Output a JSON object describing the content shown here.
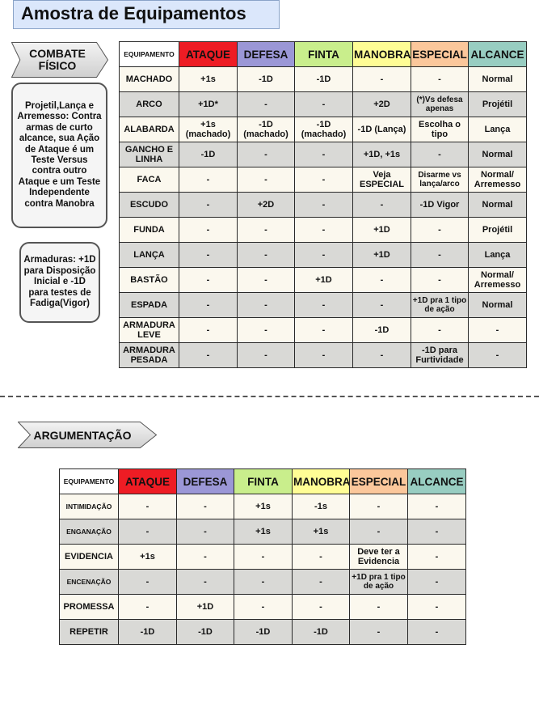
{
  "page": {
    "title": "Amostra de Equipamentos"
  },
  "combat": {
    "label_line1": "COMBATE",
    "label_line2": "FÍSICO",
    "note_ranged": "Projetil,Lança e Arremesso: Contra armas de curto alcance, sua Ação de Ataque é um Teste Versus contra outro Ataque e um Teste Independente contra Manobra",
    "note_armor": "Armaduras: +1D para Disposição Inicial e -1D para testes de Fadiga(Vigor)",
    "headers": [
      "EQUIPAMENTO",
      "ATAQUE",
      "DEFESA",
      "FINTA",
      "MANOBRA",
      "ESPECIAL",
      "ALCANCE"
    ],
    "rows": [
      [
        "MACHADO",
        "+1s",
        "-1D",
        "-1D",
        "-",
        "-",
        "Normal"
      ],
      [
        "ARCO",
        "+1D*",
        "-",
        "-",
        "+2D",
        "(*)Vs defesa apenas",
        "Projétil"
      ],
      [
        "ALABARDA",
        "+1s (machado)",
        "-1D (machado)",
        "-1D (machado)",
        "-1D (Lança)",
        "Escolha o tipo",
        "Lança"
      ],
      [
        "GANCHO E LINHA",
        "-1D",
        "-",
        "-",
        "+1D, +1s",
        "-",
        "Normal"
      ],
      [
        "FACA",
        "-",
        "-",
        "-",
        "Veja ESPECIAL",
        "Disarme vs lança/arco",
        "Normal/ Arremesso"
      ],
      [
        "ESCUDO",
        "-",
        "+2D",
        "-",
        "-",
        "-1D Vigor",
        "Normal"
      ],
      [
        "FUNDA",
        "-",
        "-",
        "-",
        "+1D",
        "-",
        "Projétil"
      ],
      [
        "LANÇA",
        "-",
        "-",
        "-",
        "+1D",
        "-",
        "Lança"
      ],
      [
        "BASTÃO",
        "-",
        "-",
        "+1D",
        "-",
        "-",
        "Normal/ Arremesso"
      ],
      [
        "ESPADA",
        "-",
        "-",
        "-",
        "-",
        "+1D pra 1 tipo de ação",
        "Normal"
      ],
      [
        "ARMADURA LEVE",
        "-",
        "-",
        "-",
        "-1D",
        "-",
        "-"
      ],
      [
        "ARMADURA PESADA",
        "-",
        "-",
        "-",
        "-",
        "-1D para Furtividade",
        "-"
      ]
    ]
  },
  "argument": {
    "label": "ARGUMENTAÇÃO",
    "headers": [
      "EQUIPAMENTO",
      "ATAQUE",
      "DEFESA",
      "FINTA",
      "MANOBRA",
      "ESPECIAL",
      "ALCANCE"
    ],
    "rows": [
      [
        "INTIMIDAÇÃO",
        "-",
        "-",
        "+1s",
        "-1s",
        "-",
        "-"
      ],
      [
        "ENGANAÇÃO",
        "-",
        "-",
        "+1s",
        "+1s",
        "-",
        "-"
      ],
      [
        "EVIDENCIA",
        "+1s",
        "-",
        "-",
        "-",
        "Deve ter a Evidencia",
        "-"
      ],
      [
        "ENCENAÇÃO",
        "-",
        "-",
        "-",
        "-",
        "+1D pra 1 tipo de ação",
        "-"
      ],
      [
        "PROMESSA",
        "-",
        "+1D",
        "-",
        "-",
        "-",
        "-"
      ],
      [
        "REPETIR",
        "-1D",
        "-1D",
        "-1D",
        "-1D",
        "-",
        "-"
      ]
    ]
  }
}
